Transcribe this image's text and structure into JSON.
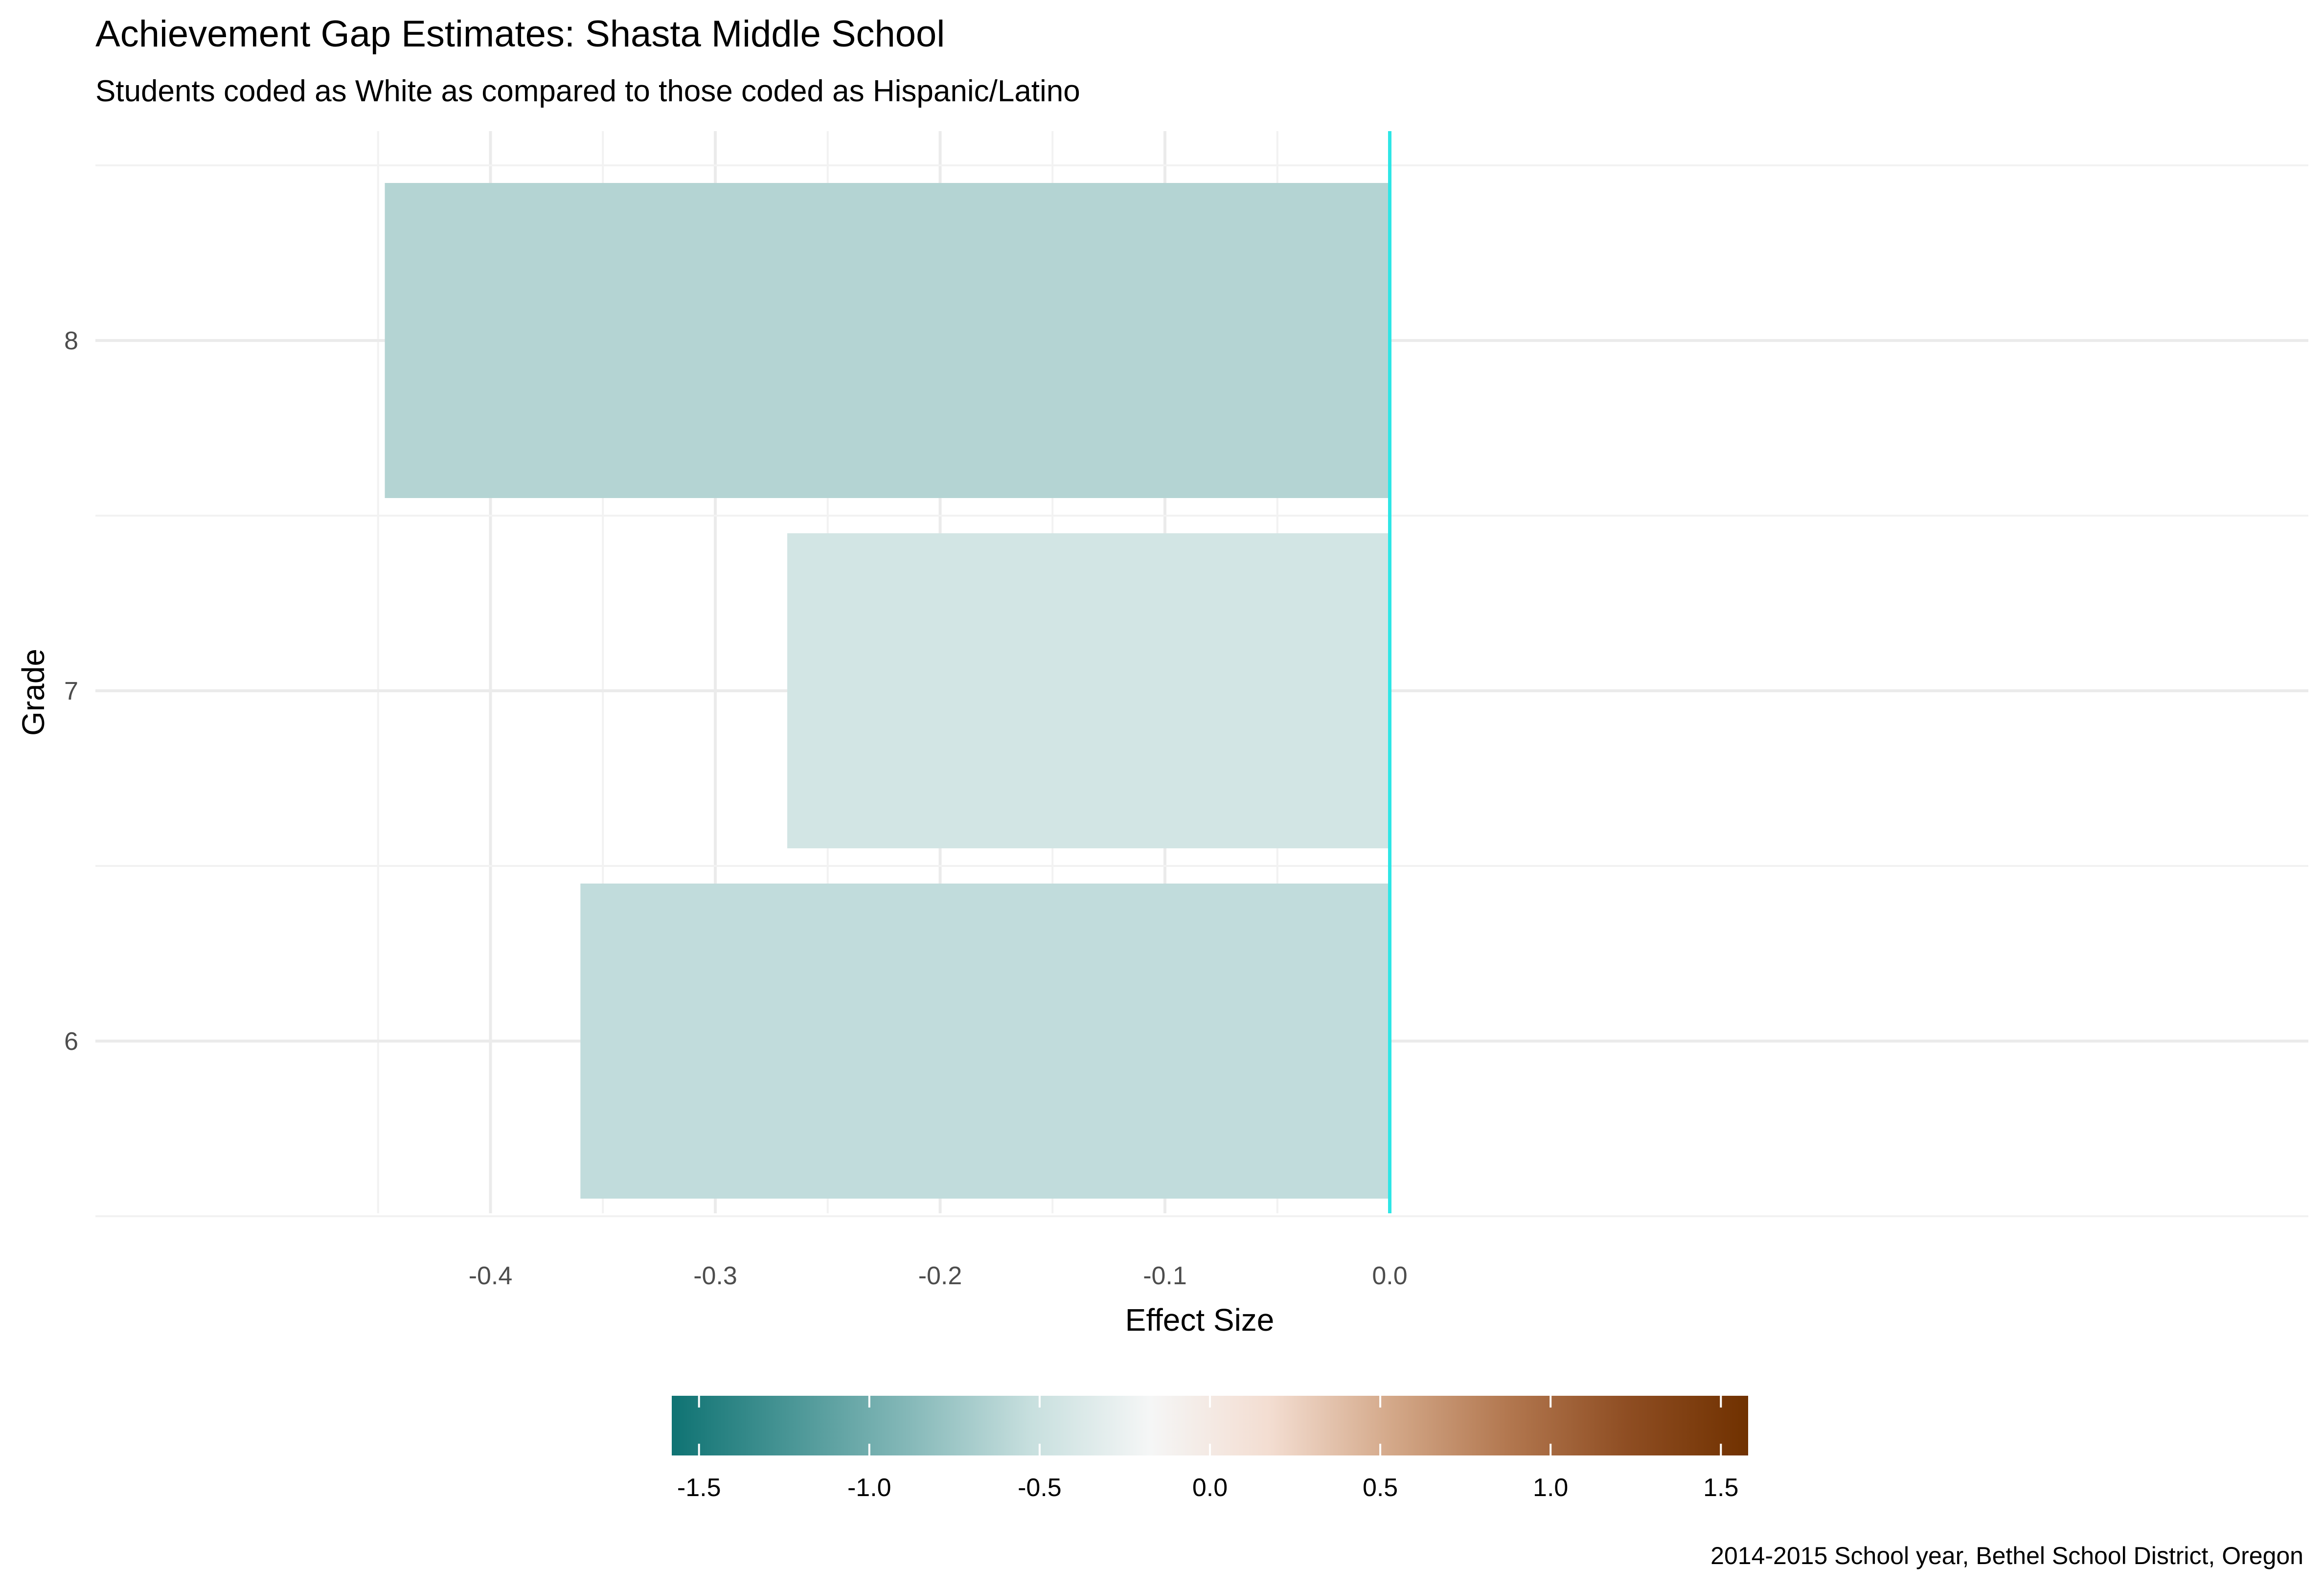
{
  "chart_data": {
    "type": "bar",
    "orientation": "horizontal",
    "title": "Achievement Gap Estimates: Shasta Middle School",
    "subtitle": "Students coded as White as compared to those coded as Hispanic/Latino",
    "xlabel": "Effect Size",
    "ylabel": "Grade",
    "categories": [
      "6",
      "7",
      "8"
    ],
    "values": [
      -0.36,
      -0.268,
      -0.447
    ],
    "bar_colors": [
      "#c1dcdc",
      "#d2e5e4",
      "#b4d4d3"
    ],
    "xlim": [
      -0.47,
      0.02
    ],
    "x_ticks": [
      "-0.4",
      "-0.3",
      "-0.2",
      "-0.1",
      "0.0"
    ],
    "x_tick_values": [
      -0.4,
      -0.3,
      -0.2,
      -0.1,
      0.0
    ],
    "zero_line_color": "#2ee6e6",
    "grid": true,
    "legend": {
      "type": "colorbar",
      "position": "bottom",
      "range": [
        -1.58,
        1.58
      ],
      "ticks": [
        "-1.5",
        "-1.0",
        "-0.5",
        "0.0",
        "0.5",
        "1.0",
        "1.5"
      ],
      "tick_values": [
        -1.5,
        -1.0,
        -0.5,
        0.0,
        0.5,
        1.0,
        1.5
      ],
      "colors": [
        "#0f7373",
        "#4a9696",
        "#86b9b9",
        "#c7dfde",
        "#f5f6f6",
        "#f3ddd1",
        "#d4a98a",
        "#b2774f",
        "#8e4d22",
        "#703100"
      ]
    },
    "caption": "2014-2015 School year, Bethel School District, Oregon"
  }
}
